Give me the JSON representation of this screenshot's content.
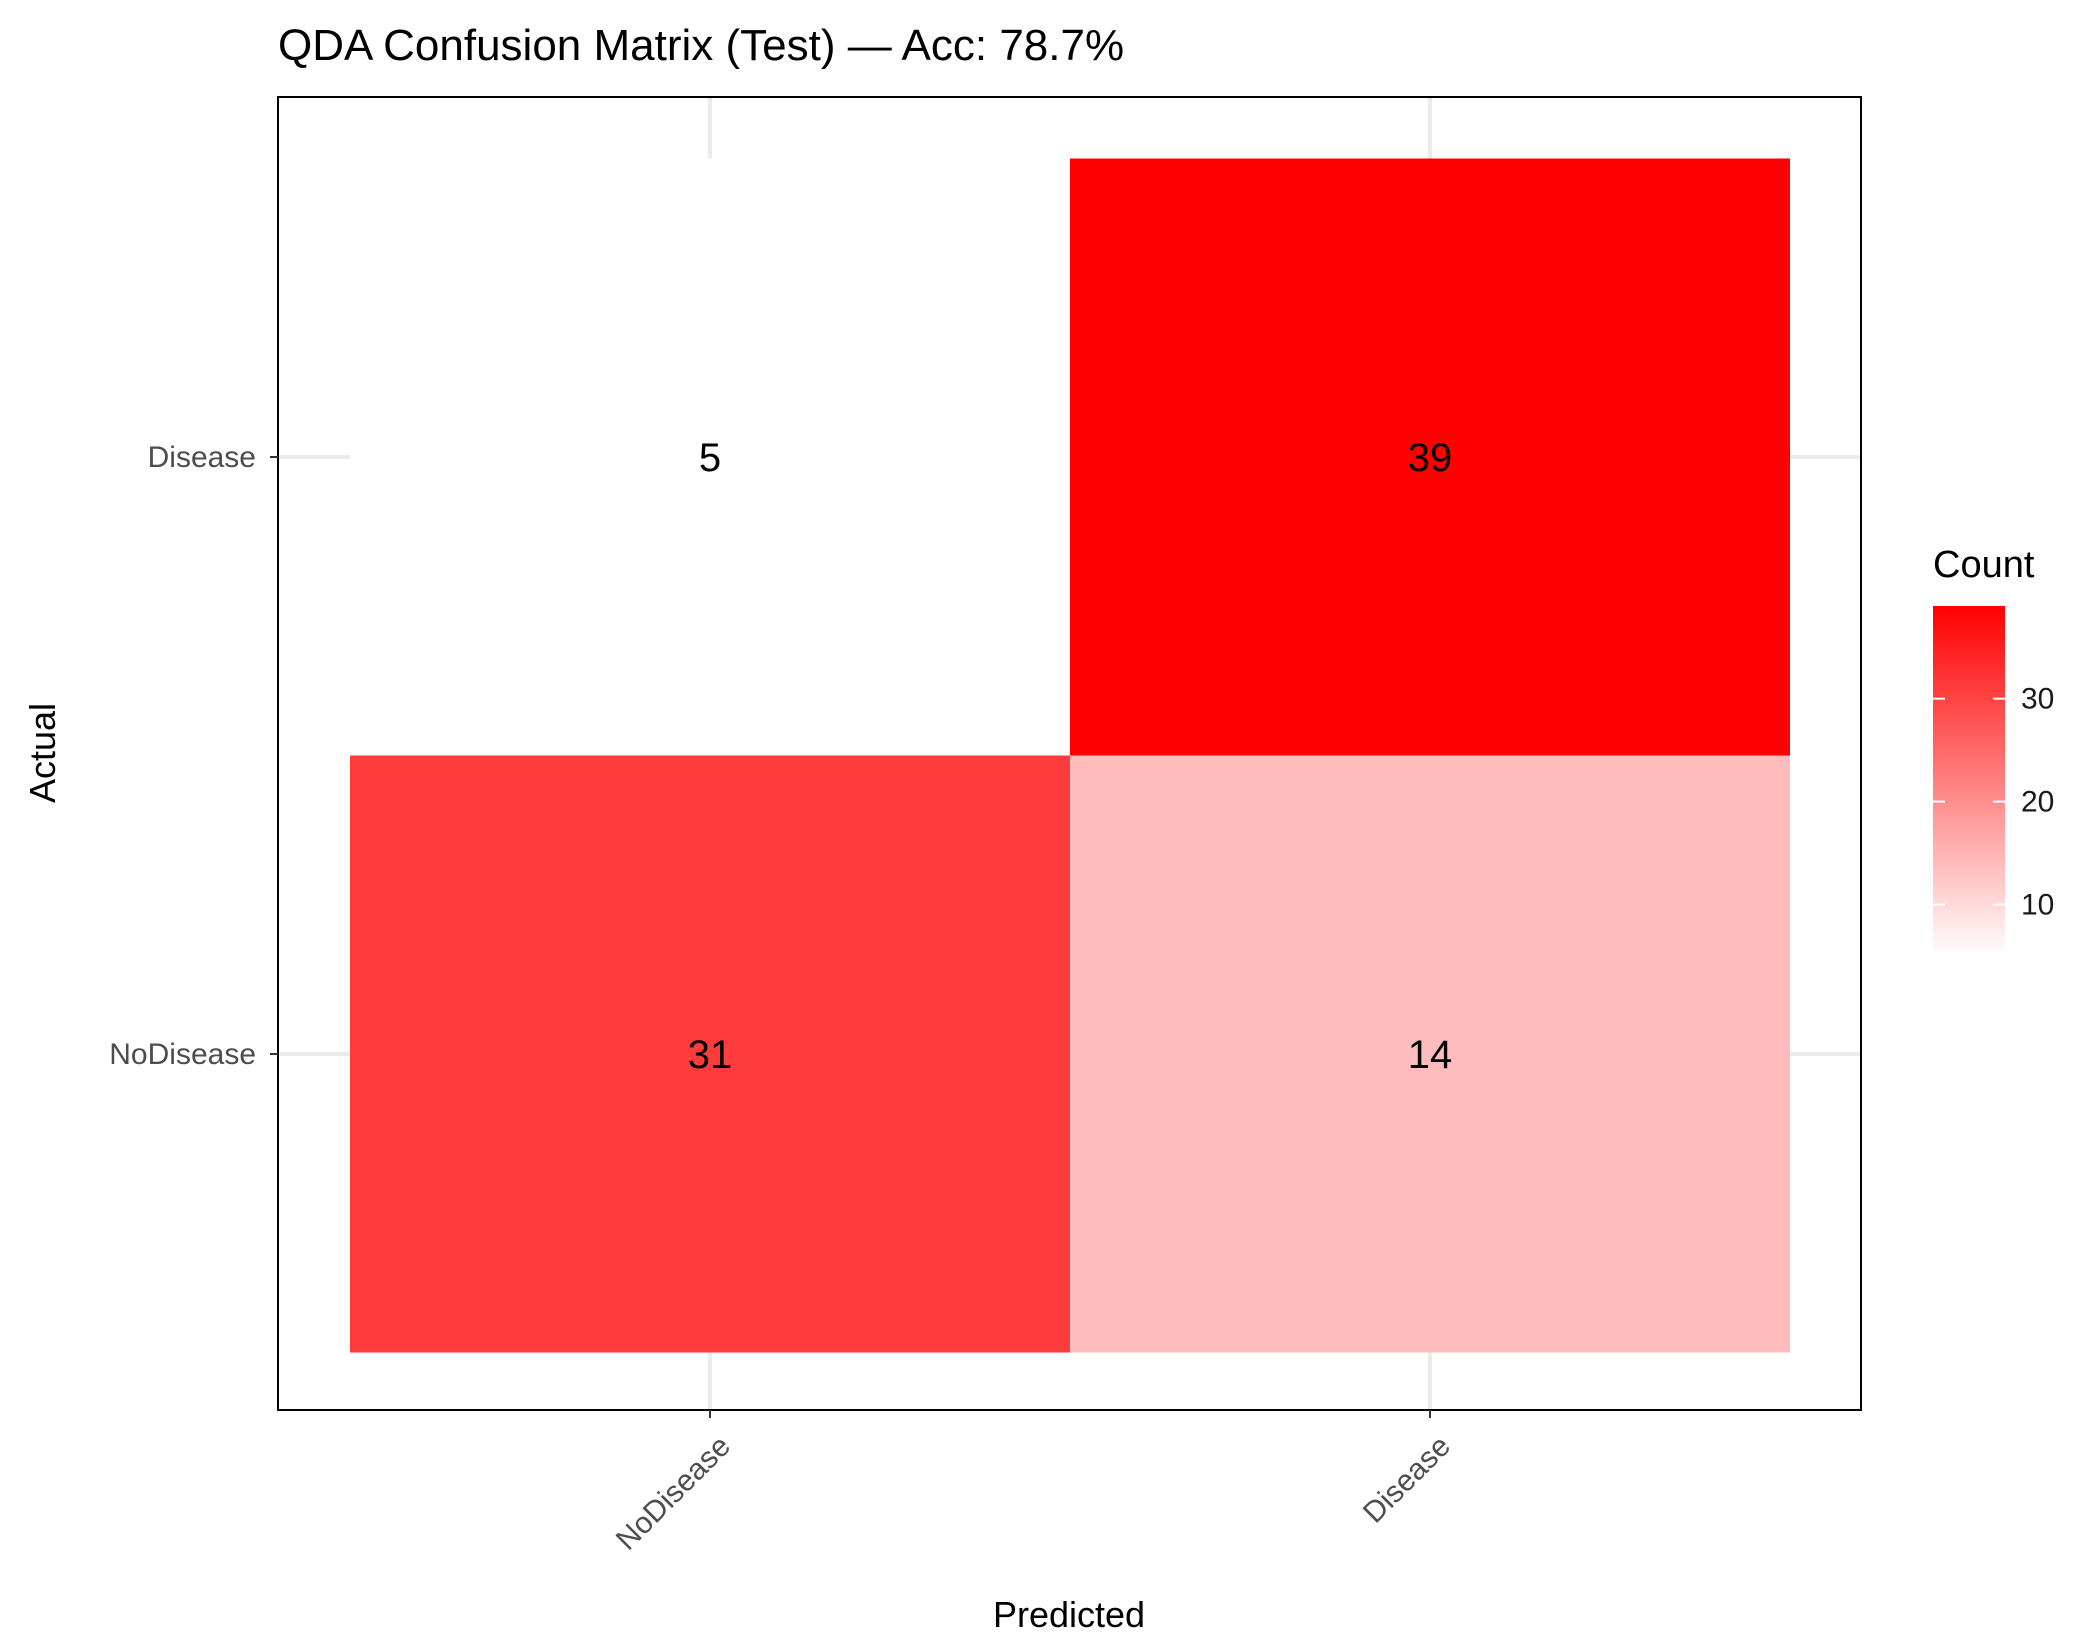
{
  "chart_data": {
    "type": "heatmap",
    "title": "QDA Confusion Matrix (Test) — Acc: 78.7%",
    "xlabel": "Predicted",
    "ylabel": "Actual",
    "x_categories": [
      "NoDisease",
      "Disease"
    ],
    "y_categories": [
      "NoDisease",
      "Disease"
    ],
    "cells": [
      {
        "predicted": "NoDisease",
        "actual": "Disease",
        "value": 5
      },
      {
        "predicted": "Disease",
        "actual": "Disease",
        "value": 39
      },
      {
        "predicted": "NoDisease",
        "actual": "NoDisease",
        "value": 31
      },
      {
        "predicted": "Disease",
        "actual": "NoDisease",
        "value": 14
      }
    ],
    "legend": {
      "title": "Count",
      "ticks": [
        10,
        20,
        30
      ],
      "range": [
        5,
        39
      ],
      "low_color": "#ffffff",
      "high_color": "#ff0000"
    },
    "grid": true,
    "legend_position": "right"
  }
}
